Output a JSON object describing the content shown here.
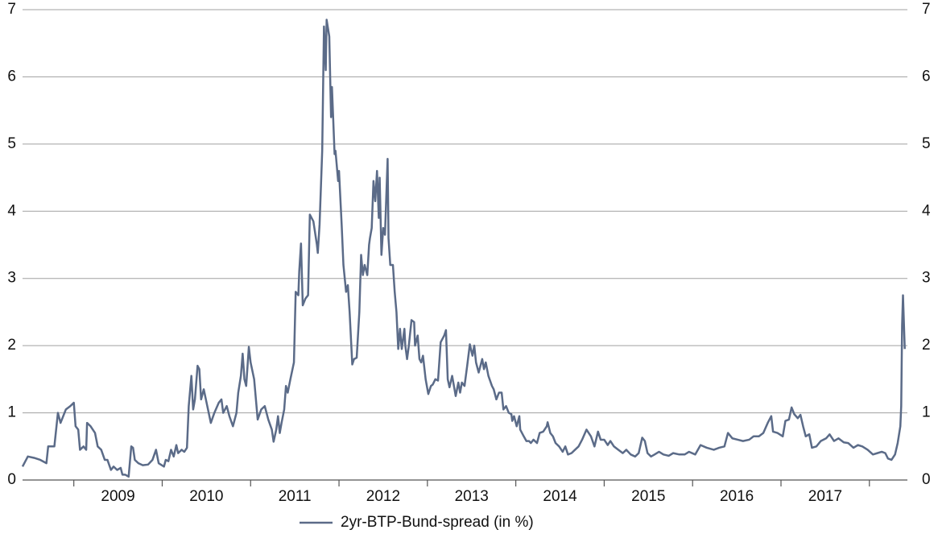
{
  "chart_data": {
    "type": "line",
    "xlim": [
      2008.42,
      2018.43
    ],
    "xticks": [
      {
        "value": 2009.5,
        "label": "2009"
      },
      {
        "value": 2010.5,
        "label": "2010"
      },
      {
        "value": 2011.5,
        "label": "2011"
      },
      {
        "value": 2012.5,
        "label": "2012"
      },
      {
        "value": 2013.5,
        "label": "2013"
      },
      {
        "value": 2014.5,
        "label": "2014"
      },
      {
        "value": 2015.5,
        "label": "2015"
      },
      {
        "value": 2016.5,
        "label": "2016"
      },
      {
        "value": 2017.5,
        "label": "2017"
      }
    ],
    "xtick_marks": [
      2009,
      2010,
      2011,
      2012,
      2013,
      2014,
      2015,
      2016,
      2017,
      2018
    ],
    "ylim": [
      0,
      7
    ],
    "yticks": [
      0,
      1,
      2,
      3,
      4,
      5,
      6,
      7
    ],
    "y2lim": [
      0,
      7
    ],
    "y2ticks": [
      0,
      1,
      2,
      3,
      4,
      5,
      6,
      7
    ],
    "grid": true,
    "legend": "bottom",
    "x": [
      2008.42,
      2008.48,
      2008.55,
      2008.62,
      2008.69,
      2008.71,
      2008.78,
      2008.82,
      2008.85,
      2008.91,
      2008.96,
      2009,
      2009.02,
      2009.05,
      2009.07,
      2009.11,
      2009.14,
      2009.15,
      2009.19,
      2009.24,
      2009.27,
      2009.31,
      2009.35,
      2009.38,
      2009.42,
      2009.45,
      2009.49,
      2009.53,
      2009.55,
      2009.58,
      2009.62,
      2009.65,
      2009.67,
      2009.69,
      2009.73,
      2009.78,
      2009.84,
      2009.89,
      2009.93,
      2009.96,
      2010.02,
      2010.04,
      2010.07,
      2010.1,
      2010.13,
      2010.16,
      2010.18,
      2010.22,
      2010.25,
      2010.28,
      2010.3,
      2010.33,
      2010.35,
      2010.37,
      2010.4,
      2010.42,
      2010.44,
      2010.47,
      2010.51,
      2010.55,
      2010.59,
      2010.64,
      2010.67,
      2010.69,
      2010.73,
      2010.76,
      2010.8,
      2010.84,
      2010.86,
      2010.89,
      2010.91,
      2010.93,
      2010.95,
      2010.98,
      2011,
      2011.04,
      2011.06,
      2011.08,
      2011.12,
      2011.16,
      2011.2,
      2011.24,
      2011.26,
      2011.29,
      2011.31,
      2011.33,
      2011.35,
      2011.38,
      2011.4,
      2011.42,
      2011.45,
      2011.49,
      2011.51,
      2011.54,
      2011.55,
      2011.57,
      2011.59,
      2011.62,
      2011.65,
      2011.67,
      2011.71,
      2011.75,
      2011.76,
      2011.78,
      2011.81,
      2011.83,
      2011.85,
      2011.86,
      2011.89,
      2011.91,
      2011.92,
      2011.95,
      2011.96,
      2011.99,
      2012,
      2012.03,
      2012.05,
      2012.08,
      2012.1,
      2012.12,
      2012.14,
      2012.15,
      2012.17,
      2012.2,
      2012.23,
      2012.25,
      2012.27,
      2012.29,
      2012.32,
      2012.34,
      2012.35,
      2012.37,
      2012.39,
      2012.41,
      2012.43,
      2012.45,
      2012.46,
      2012.48,
      2012.5,
      2012.52,
      2012.55,
      2012.56,
      2012.58,
      2012.61,
      2012.63,
      2012.65,
      2012.67,
      2012.69,
      2012.71,
      2012.74,
      2012.75,
      2012.77,
      2012.79,
      2012.82,
      2012.85,
      2012.86,
      2012.89,
      2012.91,
      2012.93,
      2012.95,
      2012.98,
      2013.01,
      2013.04,
      2013.06,
      2013.09,
      2013.12,
      2013.15,
      2013.17,
      2013.19,
      2013.21,
      2013.23,
      2013.25,
      2013.28,
      2013.32,
      2013.35,
      2013.37,
      2013.39,
      2013.42,
      2013.45,
      2013.48,
      2013.51,
      2013.53,
      2013.55,
      2013.58,
      2013.62,
      2013.64,
      2013.66,
      2013.69,
      2013.73,
      2013.75,
      2013.78,
      2013.81,
      2013.84,
      2013.86,
      2013.89,
      2013.92,
      2013.95,
      2013.96,
      2013.98,
      2014.01,
      2014.04,
      2014.05,
      2014.09,
      2014.12,
      2014.15,
      2014.17,
      2014.2,
      2014.24,
      2014.27,
      2014.31,
      2014.35,
      2014.36,
      2014.39,
      2014.42,
      2014.45,
      2014.49,
      2014.53,
      2014.56,
      2014.59,
      2014.63,
      2014.67,
      2014.71,
      2014.75,
      2014.8,
      2014.85,
      2014.89,
      2014.93,
      2014.96,
      2015,
      2015.04,
      2015.07,
      2015.11,
      2015.16,
      2015.21,
      2015.25,
      2015.3,
      2015.35,
      2015.39,
      2015.43,
      2015.46,
      2015.49,
      2015.53,
      2015.57,
      2015.62,
      2015.67,
      2015.73,
      2015.78,
      2015.85,
      2015.91,
      2015.96,
      2016.03,
      2016.09,
      2016.16,
      2016.24,
      2016.3,
      2016.36,
      2016.4,
      2016.45,
      2016.51,
      2016.57,
      2016.64,
      2016.69,
      2016.75,
      2016.8,
      2016.85,
      2016.89,
      2016.91,
      2016.96,
      2017.02,
      2017.05,
      2017.09,
      2017.12,
      2017.15,
      2017.19,
      2017.22,
      2017.25,
      2017.28,
      2017.32,
      2017.35,
      2017.4,
      2017.45,
      2017.51,
      2017.55,
      2017.6,
      2017.65,
      2017.71,
      2017.76,
      2017.82,
      2017.87,
      2017.92,
      2017.98,
      2018.04,
      2018.09,
      2018.14,
      2018.18,
      2018.21,
      2018.25,
      2018.29,
      2018.32,
      2018.35,
      2018.36,
      2018.37,
      2018.38,
      2018.4
    ],
    "series": [
      {
        "name": "2yr-BTP-Bund-spread (in %)",
        "color": "#5b6b88",
        "values": [
          0.2,
          0.35,
          0.33,
          0.3,
          0.25,
          0.5,
          0.5,
          1.0,
          0.85,
          1.05,
          1.1,
          1.15,
          0.8,
          0.75,
          0.45,
          0.5,
          0.45,
          0.85,
          0.8,
          0.7,
          0.5,
          0.45,
          0.3,
          0.3,
          0.15,
          0.2,
          0.15,
          0.18,
          0.08,
          0.08,
          0.05,
          0.5,
          0.48,
          0.3,
          0.25,
          0.22,
          0.23,
          0.3,
          0.45,
          0.25,
          0.2,
          0.3,
          0.28,
          0.45,
          0.35,
          0.52,
          0.4,
          0.45,
          0.42,
          0.48,
          1.1,
          1.55,
          1.05,
          1.2,
          1.7,
          1.65,
          1.2,
          1.35,
          1.1,
          0.85,
          1.0,
          1.15,
          1.2,
          1.0,
          1.1,
          0.95,
          0.8,
          1.0,
          1.3,
          1.55,
          1.88,
          1.5,
          1.4,
          1.98,
          1.75,
          1.5,
          1.2,
          0.9,
          1.05,
          1.1,
          0.9,
          0.75,
          0.57,
          0.75,
          0.95,
          0.7,
          0.85,
          1.05,
          1.4,
          1.3,
          1.5,
          1.75,
          2.8,
          2.75,
          3.1,
          3.52,
          2.6,
          2.7,
          2.75,
          3.95,
          3.85,
          3.5,
          3.38,
          3.8,
          4.9,
          6.75,
          6.1,
          6.85,
          6.6,
          5.4,
          5.85,
          4.85,
          4.9,
          4.45,
          4.6,
          3.8,
          3.2,
          2.8,
          2.9,
          2.5,
          1.98,
          1.72,
          1.8,
          1.82,
          2.5,
          3.35,
          3.05,
          3.2,
          3.05,
          3.5,
          3.6,
          3.75,
          4.45,
          4.15,
          4.6,
          3.9,
          4.5,
          3.35,
          3.75,
          3.65,
          4.78,
          3.6,
          3.2,
          3.2,
          2.8,
          2.5,
          1.95,
          2.25,
          1.95,
          2.25,
          2.0,
          1.8,
          2.0,
          2.38,
          2.35,
          2.0,
          2.15,
          1.8,
          1.75,
          1.85,
          1.5,
          1.28,
          1.4,
          1.42,
          1.5,
          1.48,
          2.05,
          2.1,
          2.15,
          2.23,
          1.5,
          1.38,
          1.55,
          1.25,
          1.45,
          1.3,
          1.45,
          1.4,
          1.7,
          2.02,
          1.85,
          2.0,
          1.75,
          1.6,
          1.8,
          1.65,
          1.75,
          1.55,
          1.4,
          1.35,
          1.2,
          1.3,
          1.3,
          1.05,
          1.1,
          1.0,
          0.98,
          0.88,
          0.95,
          0.8,
          0.95,
          0.75,
          0.65,
          0.58,
          0.58,
          0.55,
          0.6,
          0.55,
          0.7,
          0.72,
          0.8,
          0.86,
          0.7,
          0.65,
          0.55,
          0.5,
          0.42,
          0.5,
          0.38,
          0.4,
          0.45,
          0.5,
          0.6,
          0.75,
          0.65,
          0.5,
          0.72,
          0.6,
          0.6,
          0.52,
          0.58,
          0.5,
          0.45,
          0.4,
          0.45,
          0.38,
          0.35,
          0.4,
          0.63,
          0.58,
          0.4,
          0.35,
          0.38,
          0.42,
          0.38,
          0.36,
          0.4,
          0.38,
          0.38,
          0.42,
          0.38,
          0.52,
          0.48,
          0.45,
          0.48,
          0.5,
          0.7,
          0.62,
          0.6,
          0.58,
          0.6,
          0.65,
          0.65,
          0.7,
          0.85,
          0.95,
          0.72,
          0.7,
          0.65,
          0.88,
          0.9,
          1.08,
          0.98,
          0.92,
          0.97,
          0.8,
          0.65,
          0.68,
          0.48,
          0.5,
          0.58,
          0.62,
          0.68,
          0.58,
          0.62,
          0.56,
          0.55,
          0.48,
          0.52,
          0.5,
          0.45,
          0.38,
          0.4,
          0.42,
          0.4,
          0.32,
          0.3,
          0.38,
          0.55,
          0.8,
          1.1,
          2.3,
          2.75,
          1.95
        ]
      }
    ]
  }
}
